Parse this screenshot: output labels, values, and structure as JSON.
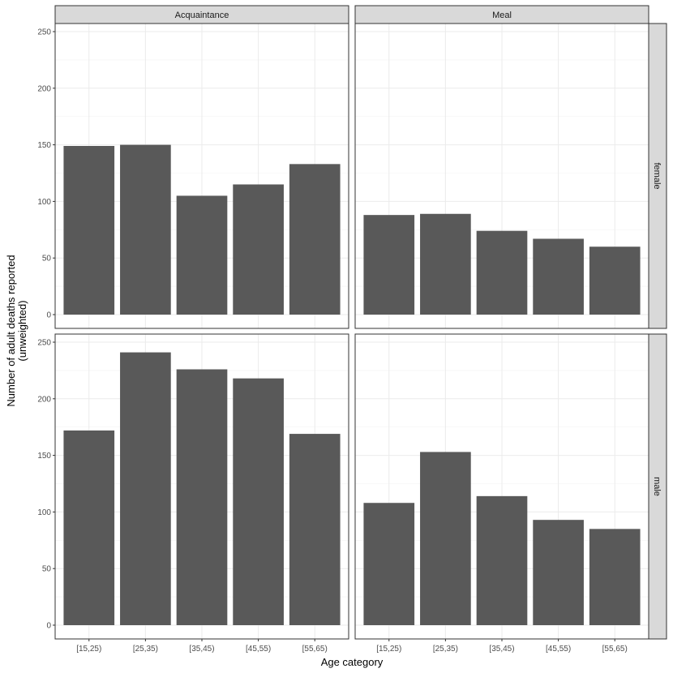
{
  "chart_data": {
    "type": "bar",
    "xlabel": "Age category",
    "ylabel_lines": [
      "Number of adult deaths reported",
      "(unweighted)"
    ],
    "categories": [
      "[15,25)",
      "[25,35)",
      "[35,45)",
      "[45,55)",
      "[55,65)"
    ],
    "ylim": [
      0,
      250
    ],
    "yticks": [
      0,
      50,
      100,
      150,
      200,
      250
    ],
    "grid": true,
    "columns": [
      "Acquaintance",
      "Meal"
    ],
    "rows": [
      "female",
      "male"
    ],
    "panels": [
      {
        "column": "Acquaintance",
        "row": "female",
        "values": [
          149,
          150,
          105,
          115,
          133
        ]
      },
      {
        "column": "Meal",
        "row": "female",
        "values": [
          88,
          89,
          74,
          67,
          60
        ]
      },
      {
        "column": "Acquaintance",
        "row": "male",
        "values": [
          172,
          241,
          226,
          218,
          169
        ]
      },
      {
        "column": "Meal",
        "row": "male",
        "values": [
          108,
          153,
          114,
          93,
          85
        ]
      }
    ],
    "colors": {
      "bar": "#595959",
      "strip": "#d9d9d9",
      "grid": "#ebebeb"
    }
  }
}
